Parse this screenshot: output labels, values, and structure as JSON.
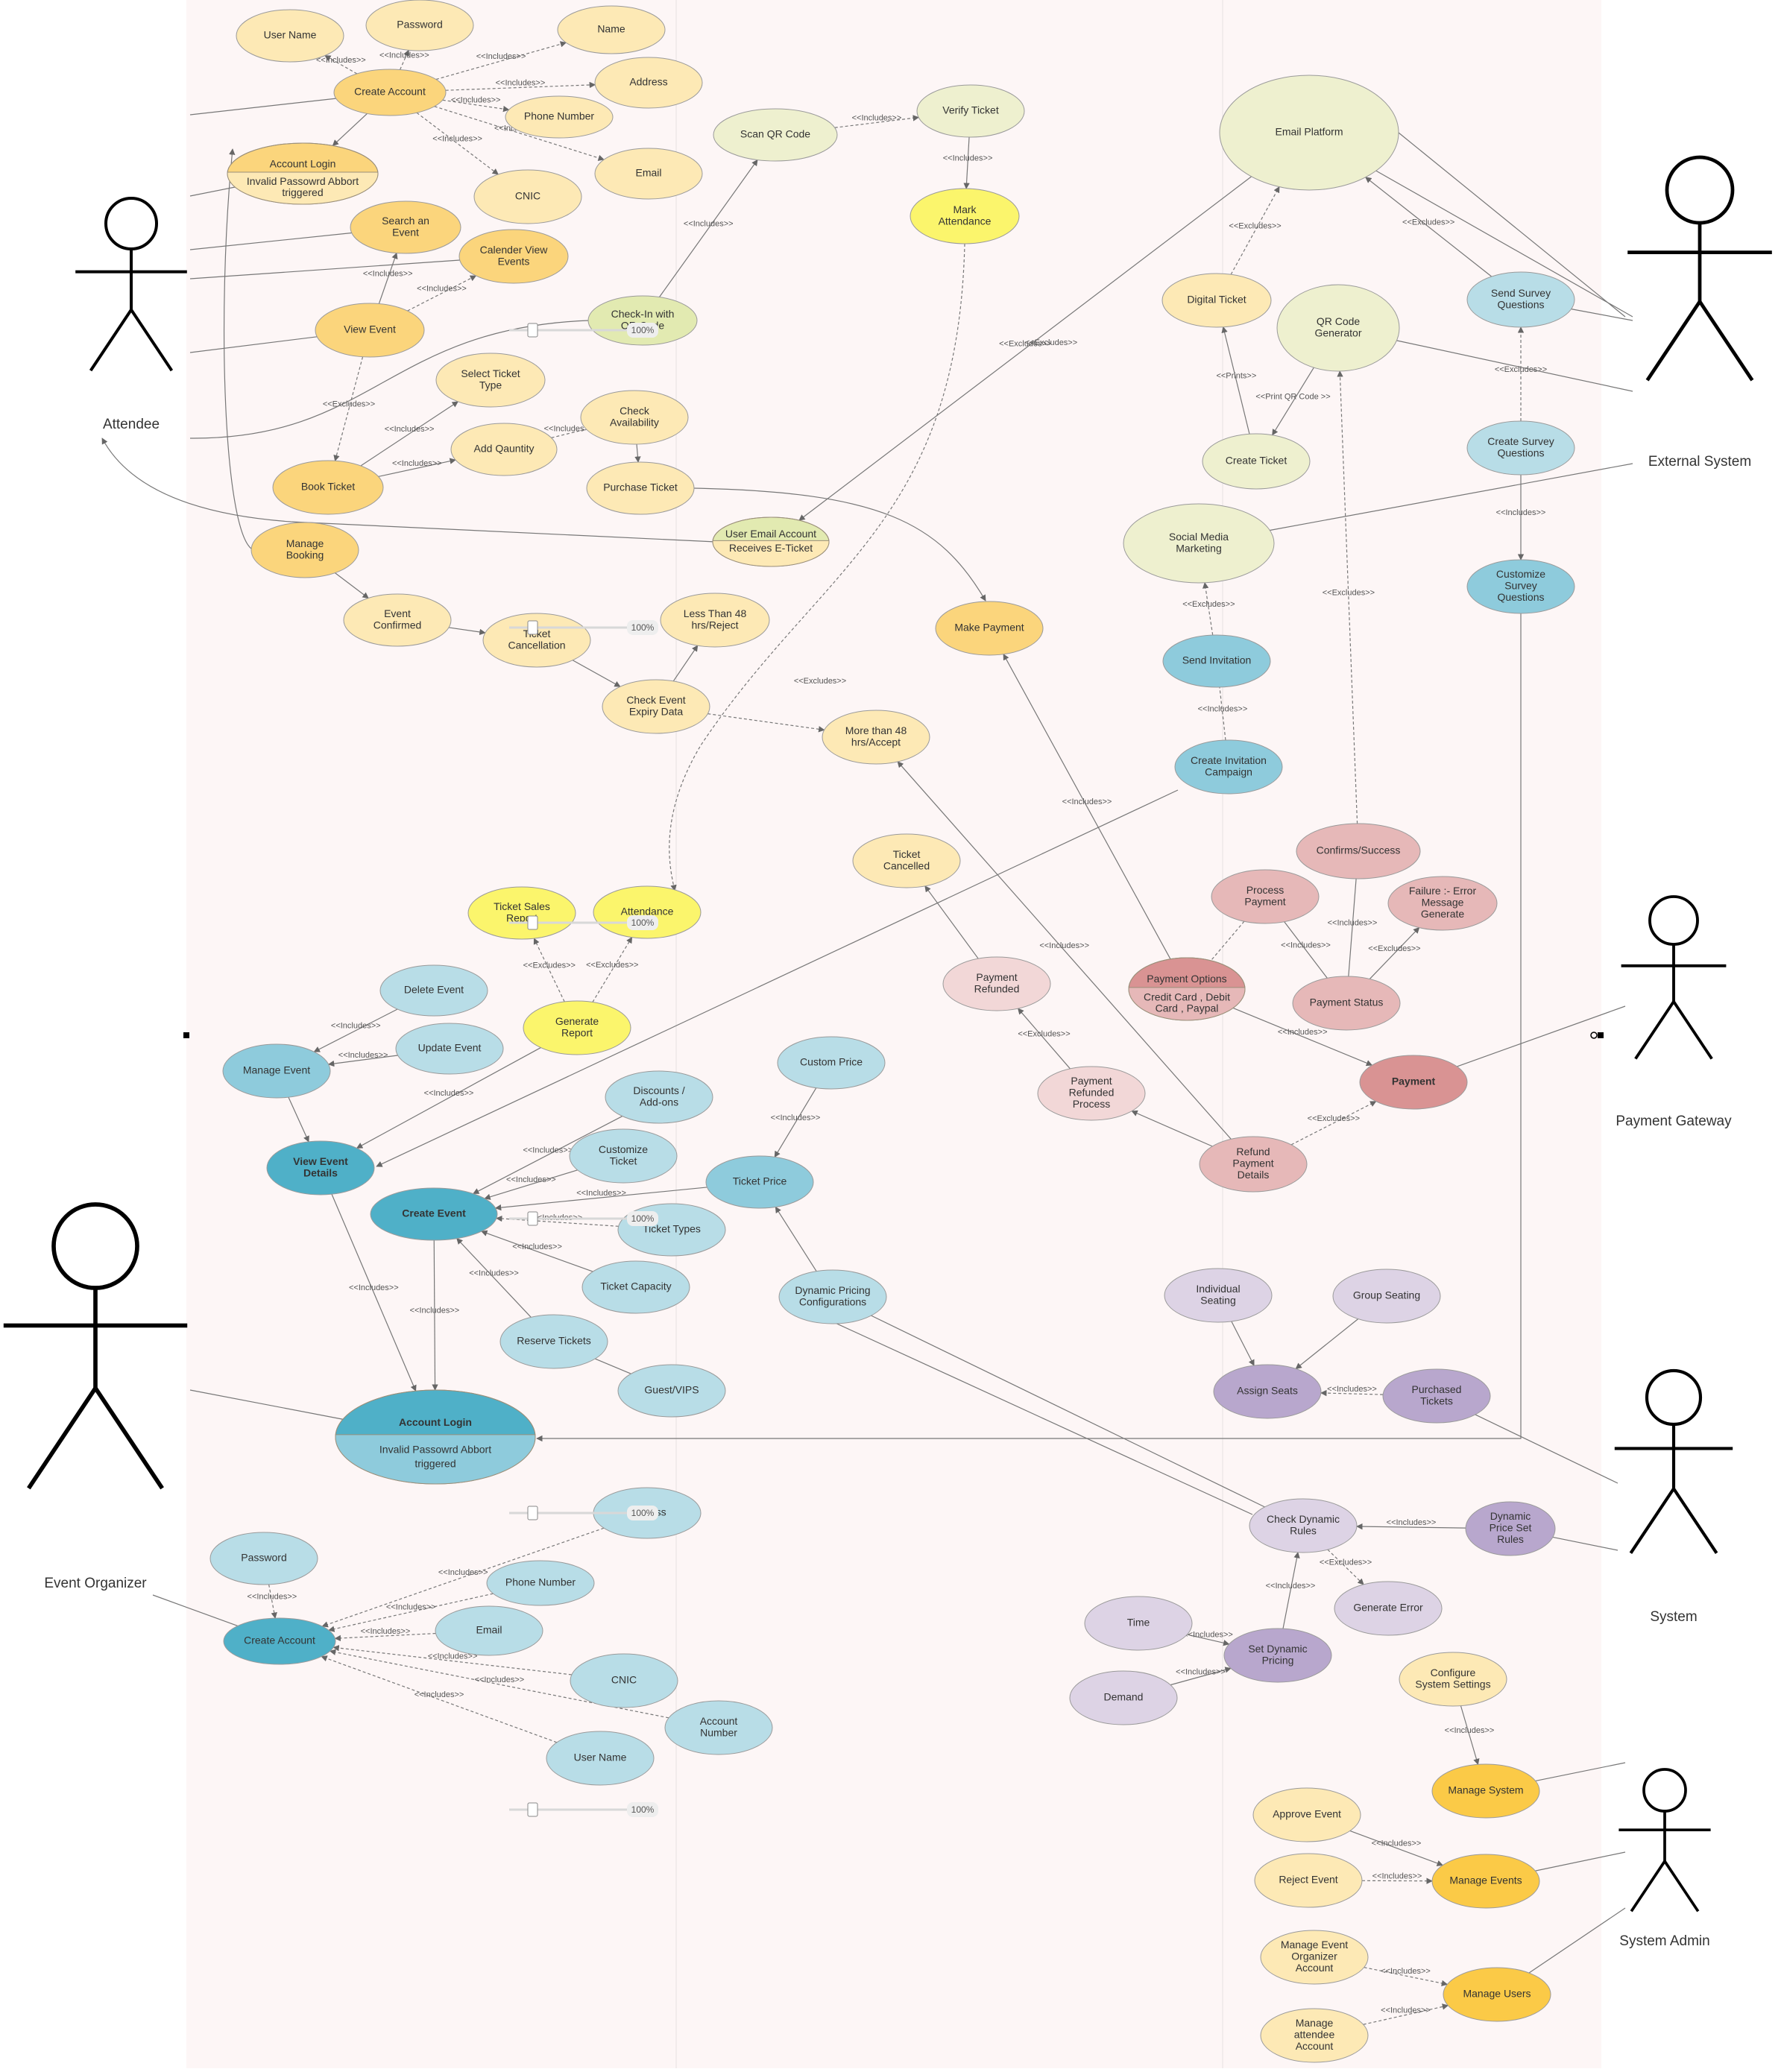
{
  "colors": {
    "page_bg": "#fdf6f6",
    "yellow_light": "#fde9b5",
    "yellow": "#fbd57c",
    "yellow_bright": "#fbf56c",
    "green_light": "#eef0cf",
    "green": "#e2eab1",
    "blue_light": "#b8dde7",
    "blue": "#8ecbdc",
    "blue_dark": "#4fb0c8",
    "pink_light": "#f2d7d7",
    "pink": "#e6b8b8",
    "pink_dark": "#d99393",
    "purple_light": "#ddd3e5",
    "purple": "#b8a7cd",
    "gold": "#fbca47",
    "line": "#777777"
  },
  "actors": [
    {
      "id": "attendee",
      "label": "Attendee"
    },
    {
      "id": "external",
      "label": "External System"
    },
    {
      "id": "gateway",
      "label": "Payment Gateway"
    },
    {
      "id": "system",
      "label": "System"
    },
    {
      "id": "organizer",
      "label": "Event Organizer"
    },
    {
      "id": "admin",
      "label": "System Admin"
    }
  ],
  "usecases": [
    {
      "id": "a_username",
      "lines": [
        "User Name"
      ]
    },
    {
      "id": "a_password",
      "lines": [
        "Password"
      ]
    },
    {
      "id": "a_name",
      "lines": [
        "Name"
      ]
    },
    {
      "id": "a_address",
      "lines": [
        "Address"
      ]
    },
    {
      "id": "a_phone",
      "lines": [
        "Phone Number"
      ]
    },
    {
      "id": "a_email",
      "lines": [
        "Email"
      ]
    },
    {
      "id": "a_cnic",
      "lines": [
        "CNIC"
      ]
    },
    {
      "id": "a_create",
      "lines": [
        "Create Account"
      ]
    },
    {
      "id": "a_login",
      "lines": [
        "Account Login"
      ],
      "sub": [
        "Invalid Passowrd Abbort",
        "triggered"
      ]
    },
    {
      "id": "a_search",
      "lines": [
        "Search an",
        "Event"
      ]
    },
    {
      "id": "a_calendar",
      "lines": [
        "Calender View",
        "Events"
      ]
    },
    {
      "id": "a_view",
      "lines": [
        "View Event"
      ]
    },
    {
      "id": "checkin",
      "lines": [
        "Check-In with",
        "QR Code"
      ]
    },
    {
      "id": "scanqr",
      "lines": [
        "Scan QR Code"
      ]
    },
    {
      "id": "verify",
      "lines": [
        "Verify Ticket"
      ]
    },
    {
      "id": "mark",
      "lines": [
        "Mark",
        "Attendance"
      ]
    },
    {
      "id": "select_type",
      "lines": [
        "Select Ticket",
        "Type"
      ]
    },
    {
      "id": "add_qty",
      "lines": [
        "Add Qauntity"
      ]
    },
    {
      "id": "check_avail",
      "lines": [
        "Check",
        "Availability"
      ]
    },
    {
      "id": "book",
      "lines": [
        "Book Ticket"
      ]
    },
    {
      "id": "purchase",
      "lines": [
        "Purchase Ticket"
      ]
    },
    {
      "id": "user_email",
      "lines": [
        "User Email Account"
      ],
      "sub": [
        "Receives E-Ticket"
      ]
    },
    {
      "id": "manage_booking",
      "lines": [
        "Manage",
        "Booking"
      ]
    },
    {
      "id": "event_confirmed",
      "lines": [
        "Event",
        "Confirmed"
      ]
    },
    {
      "id": "ticket_cancel",
      "lines": [
        "Ticket",
        "Cancellation"
      ]
    },
    {
      "id": "less48",
      "lines": [
        "Less Than 48",
        "hrs/Reject"
      ]
    },
    {
      "id": "expiry",
      "lines": [
        "Check Event",
        "Expiry Data"
      ]
    },
    {
      "id": "more48",
      "lines": [
        "More than 48",
        "hrs/Accept"
      ]
    },
    {
      "id": "make_payment",
      "lines": [
        "Make Payment"
      ]
    },
    {
      "id": "email_platform",
      "lines": [
        "Email  Platform"
      ]
    },
    {
      "id": "digital_ticket",
      "lines": [
        "Digital Ticket"
      ]
    },
    {
      "id": "qr_gen",
      "lines": [
        "QR Code",
        "Generator"
      ]
    },
    {
      "id": "create_ticket",
      "lines": [
        "Create Ticket"
      ]
    },
    {
      "id": "social",
      "lines": [
        "Social Media",
        "Marketing"
      ]
    },
    {
      "id": "send_invite",
      "lines": [
        "Send Invitation"
      ]
    },
    {
      "id": "create_campaign",
      "lines": [
        "Create Invitation",
        "Campaign"
      ]
    },
    {
      "id": "send_survey",
      "lines": [
        "Send Survey",
        "Questions"
      ]
    },
    {
      "id": "create_survey",
      "lines": [
        "Create Survey",
        "Questions"
      ]
    },
    {
      "id": "customize_survey",
      "lines": [
        "Customize",
        "Survey",
        "Questions"
      ]
    },
    {
      "id": "ticket_cancelled",
      "lines": [
        "Ticket",
        "Cancelled"
      ]
    },
    {
      "id": "confirms",
      "lines": [
        "Confirms/Success"
      ]
    },
    {
      "id": "process_payment",
      "lines": [
        "Process",
        "Payment"
      ]
    },
    {
      "id": "failure",
      "lines": [
        "Failure :- Error",
        "Message",
        "Generate"
      ]
    },
    {
      "id": "payment_status",
      "lines": [
        "Payment Status"
      ]
    },
    {
      "id": "payment_options",
      "lines": [
        "Payment Options"
      ],
      "sub": [
        "Credit Card , Debit",
        "Card , Paypal"
      ]
    },
    {
      "id": "payment_refunded",
      "lines": [
        "Payment",
        "Refunded"
      ]
    },
    {
      "id": "refund_process",
      "lines": [
        "Payment",
        "Refunded",
        "Process"
      ]
    },
    {
      "id": "refund_details",
      "lines": [
        "Refund",
        "Payment",
        "Details"
      ]
    },
    {
      "id": "payment",
      "lines": [
        "Payment"
      ]
    },
    {
      "id": "ticket_sales",
      "lines": [
        "Ticket Sales",
        "Report"
      ]
    },
    {
      "id": "attendance",
      "lines": [
        "Attendance"
      ]
    },
    {
      "id": "gen_report",
      "lines": [
        "Generate",
        "Report"
      ]
    },
    {
      "id": "delete_event",
      "lines": [
        "Delete Event"
      ]
    },
    {
      "id": "update_event",
      "lines": [
        "Update Event"
      ]
    },
    {
      "id": "manage_event",
      "lines": [
        "Manage Event"
      ]
    },
    {
      "id": "view_details",
      "lines": [
        "View Event",
        "Details"
      ]
    },
    {
      "id": "discounts",
      "lines": [
        "Discounts /",
        "Add-ons"
      ]
    },
    {
      "id": "customize_ticket",
      "lines": [
        "Customize",
        "Ticket"
      ]
    },
    {
      "id": "custom_price",
      "lines": [
        "Custom Price"
      ]
    },
    {
      "id": "ticket_price",
      "lines": [
        "Ticket Price"
      ]
    },
    {
      "id": "create_event",
      "lines": [
        "Create Event"
      ]
    },
    {
      "id": "ticket_types",
      "lines": [
        "Ticket Types"
      ]
    },
    {
      "id": "ticket_capacity",
      "lines": [
        "Ticket Capacity"
      ]
    },
    {
      "id": "dyn_config",
      "lines": [
        "Dynamic Pricing",
        "Configurations"
      ]
    },
    {
      "id": "reserve",
      "lines": [
        "Reserve Tickets"
      ]
    },
    {
      "id": "guest",
      "lines": [
        "Guest/VIPS"
      ]
    },
    {
      "id": "o_login",
      "lines": [
        "Account Login"
      ],
      "sub": [
        "Invalid Passowrd Abbort",
        "triggered"
      ]
    },
    {
      "id": "individual",
      "lines": [
        "Individual",
        "Seating"
      ]
    },
    {
      "id": "group",
      "lines": [
        "Group Seating"
      ]
    },
    {
      "id": "assign",
      "lines": [
        "Assign Seats"
      ]
    },
    {
      "id": "purchased",
      "lines": [
        "Purchased",
        "Tickets"
      ]
    },
    {
      "id": "o_address",
      "lines": [
        "Address"
      ]
    },
    {
      "id": "o_password",
      "lines": [
        "Password"
      ]
    },
    {
      "id": "o_phone",
      "lines": [
        "Phone Number"
      ]
    },
    {
      "id": "o_email",
      "lines": [
        "Email"
      ]
    },
    {
      "id": "o_create",
      "lines": [
        "Create Account"
      ]
    },
    {
      "id": "o_cnic",
      "lines": [
        "CNIC"
      ]
    },
    {
      "id": "o_account",
      "lines": [
        "Account",
        "Number"
      ]
    },
    {
      "id": "o_username",
      "lines": [
        "User Name"
      ]
    },
    {
      "id": "check_dyn",
      "lines": [
        "Check Dynamic",
        "Rules"
      ]
    },
    {
      "id": "dyn_price_set",
      "lines": [
        "Dynamic",
        "Price Set",
        "Rules"
      ]
    },
    {
      "id": "gen_error",
      "lines": [
        "Generate Error"
      ]
    },
    {
      "id": "time",
      "lines": [
        "Time"
      ]
    },
    {
      "id": "set_dyn",
      "lines": [
        "Set Dynamic",
        "Pricing"
      ]
    },
    {
      "id": "demand",
      "lines": [
        "Demand"
      ]
    },
    {
      "id": "config_sys",
      "lines": [
        "Configure",
        "System Settings"
      ]
    },
    {
      "id": "manage_system",
      "lines": [
        "Manage System"
      ]
    },
    {
      "id": "approve",
      "lines": [
        "Approve Event"
      ]
    },
    {
      "id": "reject",
      "lines": [
        "Reject Event"
      ]
    },
    {
      "id": "manage_events",
      "lines": [
        "Manage Events"
      ]
    },
    {
      "id": "manage_org",
      "lines": [
        "Manage Event",
        "Organizer",
        "Account"
      ]
    },
    {
      "id": "manage_users",
      "lines": [
        "Manage Users"
      ]
    },
    {
      "id": "manage_att",
      "lines": [
        "Manage",
        "attendee",
        "Account"
      ]
    }
  ],
  "relations": [
    {
      "label": "<<Includes>>"
    },
    {
      "label": "<<Excludes>>"
    },
    {
      "label": "<<Prints>>"
    },
    {
      "label": "<<Print QR Code >>"
    }
  ],
  "zoom_sliders": [
    {
      "label": "100%"
    },
    {
      "label": "100%"
    },
    {
      "label": "100%"
    },
    {
      "label": "100%"
    },
    {
      "label": "100%"
    },
    {
      "label": "100%"
    }
  ]
}
